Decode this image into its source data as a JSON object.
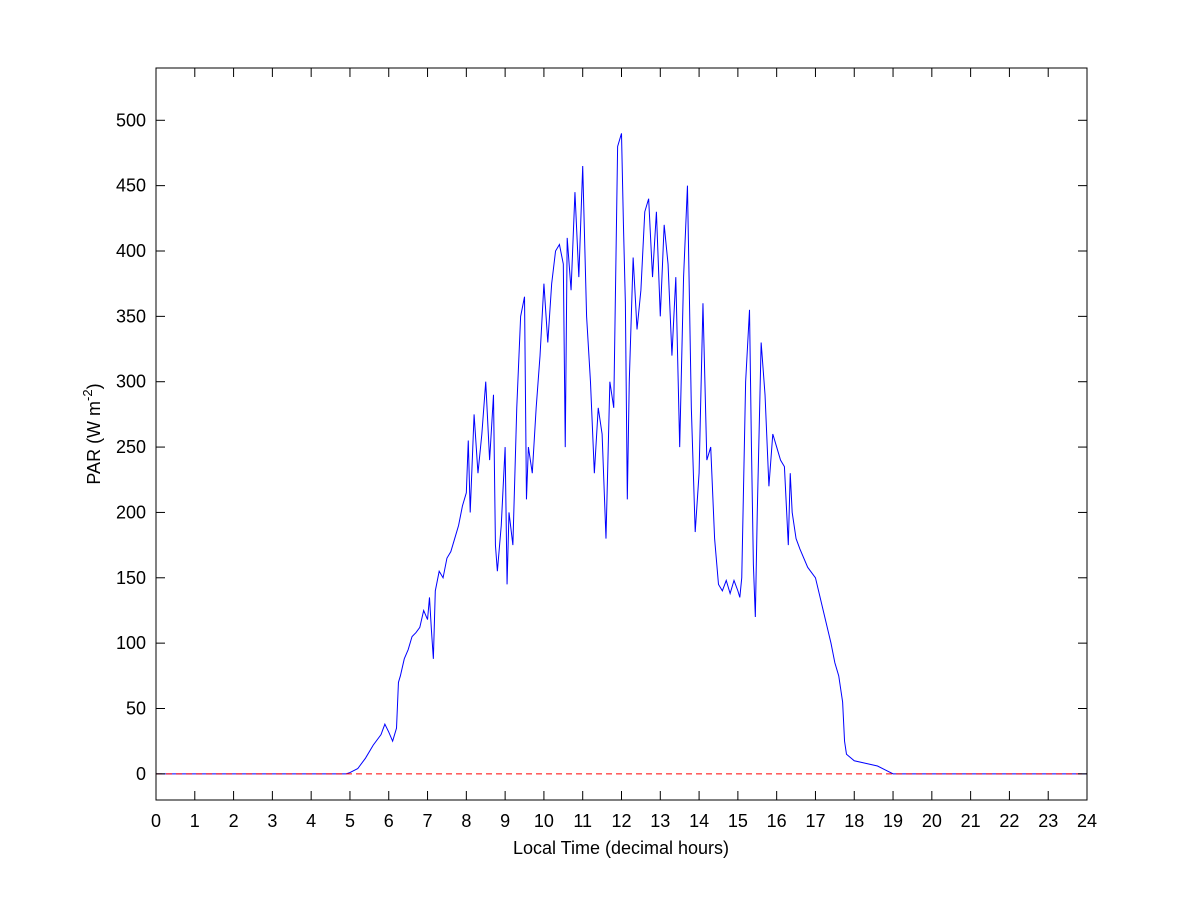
{
  "chart_data": {
    "type": "line",
    "x_label": "Local Time (decimal hours)",
    "y_label_parts": [
      "PAR (W m",
      "-2",
      ")"
    ],
    "xlim": [
      0,
      24
    ],
    "ylim": [
      -20,
      540
    ],
    "xticks": [
      0,
      1,
      2,
      3,
      4,
      5,
      6,
      7,
      8,
      9,
      10,
      11,
      12,
      13,
      14,
      15,
      16,
      17,
      18,
      19,
      20,
      21,
      22,
      23,
      24
    ],
    "yticks": [
      0,
      50,
      100,
      150,
      200,
      250,
      300,
      350,
      400,
      450,
      500
    ],
    "grid": false,
    "series": [
      {
        "color": "#0000ff",
        "dash": false,
        "x": [
          0,
          4.5,
          4.9,
          5.0,
          5.2,
          5.4,
          5.6,
          5.8,
          5.9,
          6.0,
          6.1,
          6.2,
          6.25,
          6.3,
          6.4,
          6.5,
          6.6,
          6.7,
          6.8,
          6.9,
          7.0,
          7.05,
          7.1,
          7.15,
          7.2,
          7.3,
          7.4,
          7.5,
          7.6,
          7.7,
          7.8,
          7.9,
          8.0,
          8.05,
          8.1,
          8.2,
          8.3,
          8.4,
          8.5,
          8.6,
          8.7,
          8.75,
          8.8,
          8.9,
          9.0,
          9.05,
          9.1,
          9.2,
          9.3,
          9.4,
          9.5,
          9.55,
          9.6,
          9.7,
          9.8,
          9.9,
          10.0,
          10.1,
          10.2,
          10.3,
          10.4,
          10.5,
          10.55,
          10.6,
          10.7,
          10.8,
          10.9,
          11.0,
          11.1,
          11.2,
          11.3,
          11.4,
          11.5,
          11.6,
          11.7,
          11.8,
          11.9,
          12.0,
          12.05,
          12.1,
          12.15,
          12.2,
          12.3,
          12.4,
          12.5,
          12.6,
          12.7,
          12.8,
          12.9,
          13.0,
          13.1,
          13.2,
          13.3,
          13.4,
          13.5,
          13.6,
          13.7,
          13.8,
          13.9,
          14.0,
          14.1,
          14.2,
          14.3,
          14.4,
          14.5,
          14.6,
          14.7,
          14.8,
          14.9,
          15.0,
          15.05,
          15.1,
          15.2,
          15.3,
          15.35,
          15.4,
          15.45,
          15.5,
          15.6,
          15.7,
          15.8,
          15.9,
          16.0,
          16.1,
          16.2,
          16.3,
          16.35,
          16.4,
          16.5,
          16.6,
          16.8,
          17.0,
          17.2,
          17.4,
          17.5,
          17.6,
          17.7,
          17.75,
          17.8,
          18.0,
          18.3,
          18.6,
          18.8,
          19.0,
          24
        ],
        "values": [
          0,
          0,
          0,
          1,
          4,
          12,
          22,
          30,
          38,
          32,
          25,
          35,
          70,
          75,
          88,
          95,
          105,
          108,
          112,
          125,
          118,
          135,
          110,
          88,
          140,
          155,
          150,
          165,
          170,
          180,
          190,
          205,
          215,
          255,
          200,
          275,
          230,
          260,
          300,
          240,
          290,
          175,
          155,
          190,
          250,
          145,
          200,
          175,
          280,
          350,
          365,
          210,
          250,
          230,
          280,
          320,
          375,
          330,
          375,
          400,
          405,
          390,
          250,
          410,
          370,
          445,
          380,
          465,
          350,
          300,
          230,
          280,
          260,
          180,
          300,
          280,
          480,
          490,
          420,
          360,
          210,
          300,
          395,
          340,
          370,
          430,
          440,
          380,
          430,
          350,
          420,
          390,
          320,
          380,
          250,
          380,
          450,
          280,
          185,
          230,
          360,
          240,
          250,
          180,
          145,
          140,
          148,
          138,
          148,
          140,
          135,
          150,
          300,
          355,
          250,
          160,
          120,
          200,
          330,
          290,
          220,
          260,
          250,
          240,
          235,
          175,
          230,
          200,
          180,
          172,
          158,
          150,
          125,
          100,
          85,
          75,
          55,
          25,
          15,
          10,
          8,
          6,
          3,
          0,
          0
        ]
      },
      {
        "color": "#ff0000",
        "dash": true,
        "x": [
          0,
          24
        ],
        "values": [
          0,
          0
        ]
      }
    ]
  }
}
